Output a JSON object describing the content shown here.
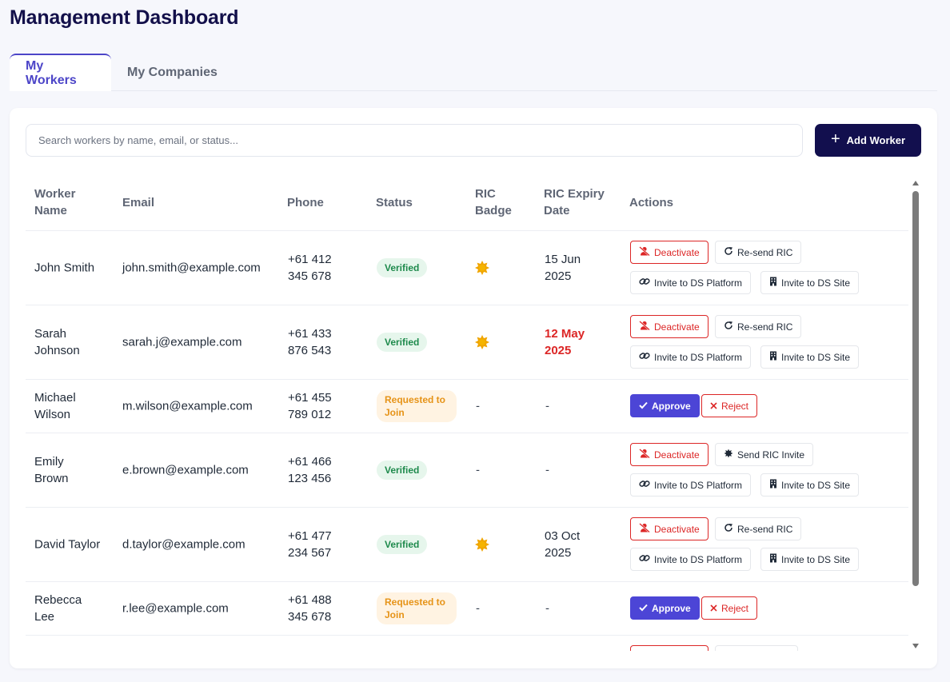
{
  "page": {
    "title": "Management Dashboard"
  },
  "tabs": [
    {
      "label": "My Workers",
      "active": true
    },
    {
      "label": "My Companies",
      "active": false
    }
  ],
  "search": {
    "placeholder": "Search workers by name, email, or status...",
    "value": ""
  },
  "toolbar": {
    "add_label": "Add Worker"
  },
  "table": {
    "headers": {
      "name": "Worker Name",
      "email": "Email",
      "phone": "Phone",
      "status": "Status",
      "ric_badge": "RIC Badge",
      "ric_expiry": "RIC Expiry Date",
      "actions": "Actions"
    },
    "rows": [
      {
        "name": "John Smith",
        "email": "john.smith@example.com",
        "phone": "+61 412 345 678",
        "status": "Verified",
        "ric_badge": "badge-icon",
        "ric_expiry": "15 Jun 2025",
        "expiry_warning": false
      },
      {
        "name": "Sarah Johnson",
        "email": "sarah.j@example.com",
        "phone": "+61 433 876 543",
        "status": "Verified",
        "ric_badge": "badge-icon",
        "ric_expiry": "12 May 2025",
        "expiry_warning": true
      },
      {
        "name": "Michael Wilson",
        "email": "m.wilson@example.com",
        "phone": "+61 455 789 012",
        "status": "Requested to Join",
        "ric_badge": "-",
        "ric_expiry": "-",
        "expiry_warning": false
      },
      {
        "name": "Emily Brown",
        "email": "e.brown@example.com",
        "phone": "+61 466 123 456",
        "status": "Verified",
        "ric_badge": "-",
        "ric_expiry": "-",
        "expiry_warning": false
      },
      {
        "name": "David Taylor",
        "email": "d.taylor@example.com",
        "phone": "+61 477 234 567",
        "status": "Verified",
        "ric_badge": "badge-icon",
        "ric_expiry": "03 Oct 2025",
        "expiry_warning": false
      },
      {
        "name": "Rebecca Lee",
        "email": "r.lee@example.com",
        "phone": "+61 488 345 678",
        "status": "Requested to Join",
        "ric_badge": "-",
        "ric_expiry": "-",
        "expiry_warning": false
      }
    ]
  },
  "actions": {
    "deactivate": "Deactivate",
    "resend_ric": "Re-send RIC",
    "send_ric_invite": "Send RIC Invite",
    "invite_platform": "Invite to DS Platform",
    "invite_site": "Invite to DS Site",
    "approve": "Approve",
    "reject": "Reject"
  },
  "colors": {
    "brand_dark": "#120f4e",
    "accent": "#4c45d6",
    "danger": "#dc2626",
    "verified": "#1e8a4c",
    "requested": "#e69317",
    "ric_badge": "#f0a500"
  }
}
